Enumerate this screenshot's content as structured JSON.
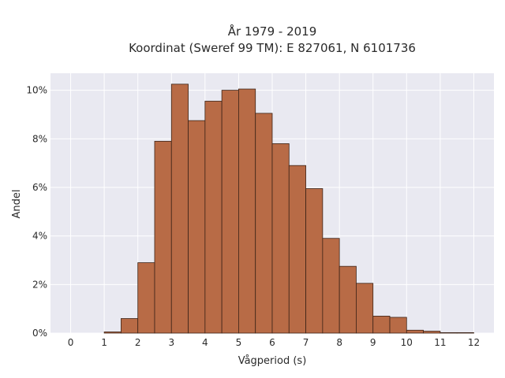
{
  "chart_data": {
    "type": "bar",
    "title_line1": "År 1979 - 2019",
    "title_line2": "Koordinat (Sweref 99 TM): E 827061, N 6101736",
    "xlabel": "Vågperiod (s)",
    "ylabel": "Andel",
    "xlim": [
      -0.6,
      12.6
    ],
    "ylim": [
      0,
      10.7
    ],
    "x_ticks": [
      0,
      1,
      2,
      3,
      4,
      5,
      6,
      7,
      8,
      9,
      10,
      11,
      12
    ],
    "y_ticks": [
      0,
      2,
      4,
      6,
      8,
      10
    ],
    "y_tick_labels": [
      "0%",
      "2%",
      "4%",
      "6%",
      "8%",
      "10%"
    ],
    "grid": true,
    "bar_color": "#b86b46",
    "bar_edge_color": "#3d2418",
    "background_color": "#e9e9f1",
    "bins": [
      {
        "start": 1.0,
        "end": 1.5,
        "value": 0.05
      },
      {
        "start": 1.5,
        "end": 2.0,
        "value": 0.6
      },
      {
        "start": 2.0,
        "end": 2.5,
        "value": 2.9
      },
      {
        "start": 2.5,
        "end": 3.0,
        "value": 7.9
      },
      {
        "start": 3.0,
        "end": 3.5,
        "value": 10.25
      },
      {
        "start": 3.5,
        "end": 4.0,
        "value": 8.75
      },
      {
        "start": 4.0,
        "end": 4.5,
        "value": 9.55
      },
      {
        "start": 4.5,
        "end": 5.0,
        "value": 10.0
      },
      {
        "start": 5.0,
        "end": 5.5,
        "value": 10.05
      },
      {
        "start": 5.5,
        "end": 6.0,
        "value": 9.05
      },
      {
        "start": 6.0,
        "end": 6.5,
        "value": 7.8
      },
      {
        "start": 6.5,
        "end": 7.0,
        "value": 6.9
      },
      {
        "start": 7.0,
        "end": 7.5,
        "value": 5.95
      },
      {
        "start": 7.5,
        "end": 8.0,
        "value": 3.9
      },
      {
        "start": 8.0,
        "end": 8.5,
        "value": 2.75
      },
      {
        "start": 8.5,
        "end": 9.0,
        "value": 2.05
      },
      {
        "start": 9.0,
        "end": 9.5,
        "value": 0.7
      },
      {
        "start": 9.5,
        "end": 10.0,
        "value": 0.65
      },
      {
        "start": 10.0,
        "end": 10.5,
        "value": 0.12
      },
      {
        "start": 10.5,
        "end": 11.0,
        "value": 0.08
      },
      {
        "start": 11.0,
        "end": 11.5,
        "value": 0.02
      },
      {
        "start": 11.5,
        "end": 12.0,
        "value": 0.02
      }
    ]
  }
}
